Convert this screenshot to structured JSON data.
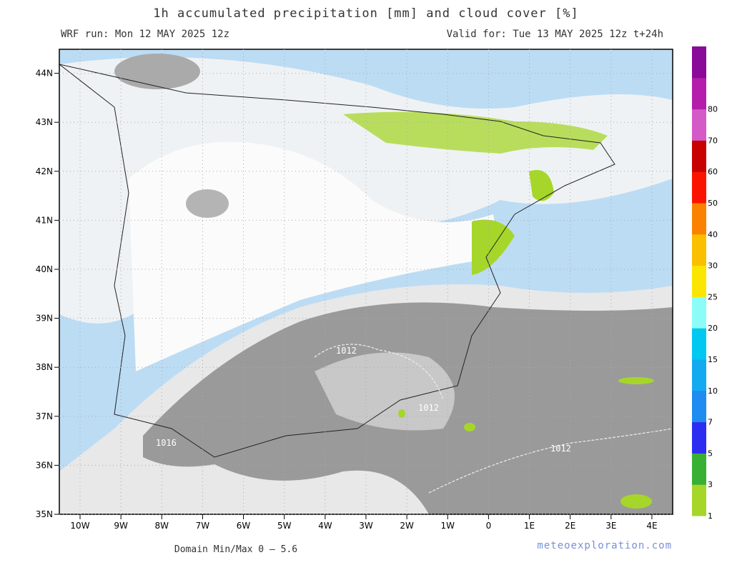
{
  "header": {
    "title": "1h accumulated precipitation [mm] and cloud cover [%]",
    "run": "WRF run: Mon 12 MAY 2025 12z",
    "valid": "Valid for: Tue 13 MAY 2025 12z  t+24h"
  },
  "map": {
    "lat_labels": [
      "35N",
      "36N",
      "37N",
      "38N",
      "39N",
      "40N",
      "41N",
      "42N",
      "43N",
      "44N"
    ],
    "lon_labels": [
      "10W",
      "9W",
      "8W",
      "7W",
      "6W",
      "5W",
      "4W",
      "3W",
      "2W",
      "1W",
      "0",
      "1E",
      "2E",
      "3E",
      "4E"
    ],
    "isobar_labels": [
      "1012",
      "1012",
      "1016",
      "1012"
    ]
  },
  "colorbar": {
    "levels": [
      1,
      3,
      5,
      7,
      10,
      15,
      20,
      25,
      30,
      40,
      50,
      60,
      70,
      80
    ],
    "colors": [
      "#a6d62a",
      "#38b034",
      "#2d2df2",
      "#1e8cf0",
      "#14aaf0",
      "#00c8f0",
      "#8cfcf8",
      "#fae600",
      "#fac000",
      "#fa8200",
      "#fa1400",
      "#c80000",
      "#d45ac8",
      "#b41eaa",
      "#8a0a9a"
    ]
  },
  "footer": {
    "minmax": "Domain Min/Max 0 — 5.6",
    "credit": "meteoexploration.com"
  }
}
